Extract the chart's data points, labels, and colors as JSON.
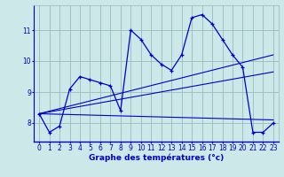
{
  "xlabel": "Graphe des températures (°c)",
  "background_color": "#cce8e8",
  "line_color": "#0000cc",
  "grid_color": "#99bbbb",
  "xlim": [
    -0.5,
    23.5
  ],
  "ylim": [
    7.4,
    11.8
  ],
  "yticks": [
    8,
    9,
    10,
    11
  ],
  "xticks": [
    0,
    1,
    2,
    3,
    4,
    5,
    6,
    7,
    8,
    9,
    10,
    11,
    12,
    13,
    14,
    15,
    16,
    17,
    18,
    19,
    20,
    21,
    22,
    23
  ],
  "main_line_x": [
    0,
    1,
    2,
    3,
    4,
    5,
    6,
    7,
    8,
    9,
    10,
    11,
    12,
    13,
    14,
    15,
    16,
    17,
    18,
    19,
    20,
    21,
    22,
    23
  ],
  "main_line_y": [
    8.3,
    7.7,
    7.9,
    9.1,
    9.5,
    9.4,
    9.3,
    9.2,
    8.4,
    11.0,
    10.7,
    10.2,
    9.9,
    9.7,
    10.2,
    11.4,
    11.5,
    11.2,
    10.7,
    10.2,
    9.8,
    7.7,
    7.7,
    8.0
  ],
  "fan_lines": [
    {
      "x": [
        0,
        23
      ],
      "y": [
        8.3,
        8.1
      ]
    },
    {
      "x": [
        0,
        23
      ],
      "y": [
        8.3,
        9.65
      ]
    },
    {
      "x": [
        0,
        23
      ],
      "y": [
        8.3,
        10.2
      ]
    }
  ],
  "xlabel_fontsize": 6.5,
  "tick_fontsize": 5.5
}
